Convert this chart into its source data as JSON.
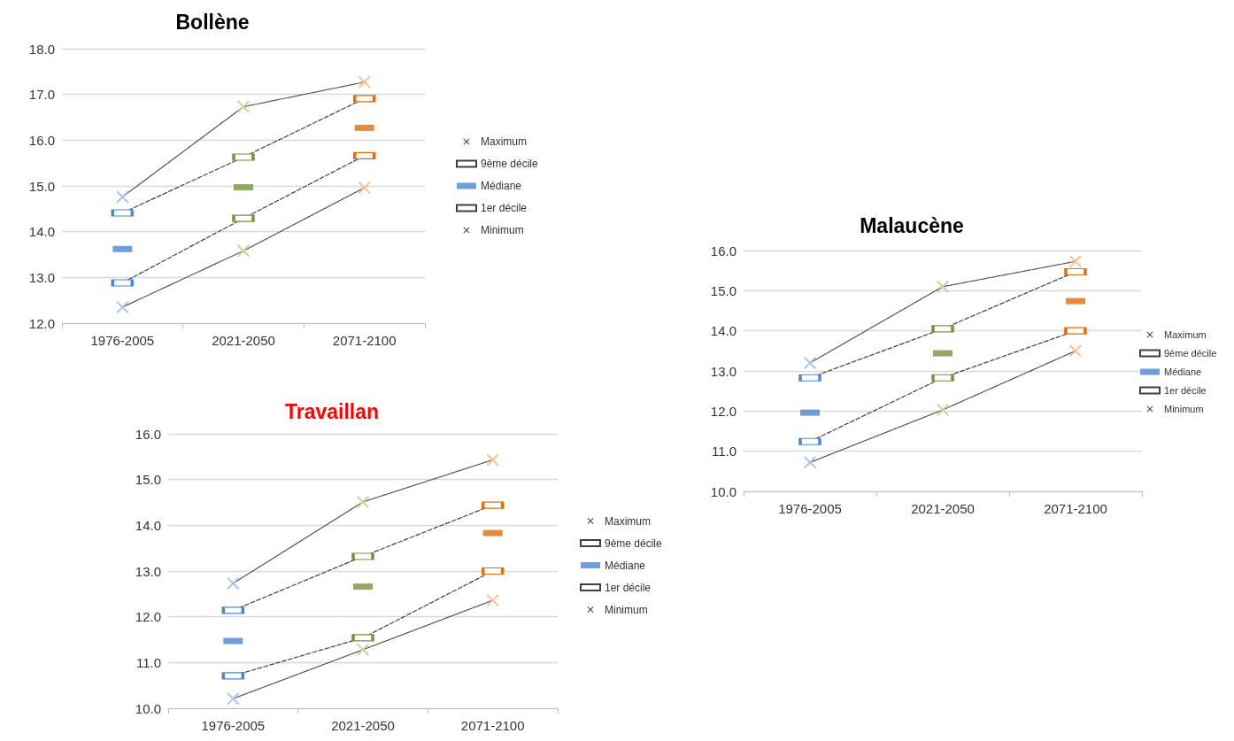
{
  "chart_data": [
    {
      "type": "line",
      "title": "Bollène",
      "categories": [
        "1976-2005",
        "2021-2050",
        "2071-2100"
      ],
      "ylim": [
        12,
        18
      ],
      "yticks": [
        {
          "value": 12,
          "label": "12.0"
        },
        {
          "value": 13,
          "label": "13.0"
        },
        {
          "value": 14,
          "label": "14.0"
        },
        {
          "value": 15,
          "label": "15.0"
        },
        {
          "value": 16,
          "label": "16.0"
        },
        {
          "value": 17,
          "label": "17.0"
        },
        {
          "value": 18,
          "label": "18.0"
        }
      ],
      "grid": "y",
      "legend": "right",
      "series": [
        {
          "name": "Maximum",
          "type": "line",
          "marker": "cross",
          "line_style": "dotted",
          "color": "#404040",
          "colors": [
            "#a9c4eb",
            "#c3d69b",
            "#fac090"
          ],
          "values": [
            14.76,
            16.73,
            17.27
          ]
        },
        {
          "name": "9ème décile",
          "type": "line",
          "marker": "square",
          "line_style": "dashed",
          "color": "#404040",
          "colors": [
            "#4a86d4",
            "#77933c",
            "#e46c0a"
          ],
          "values": [
            14.41,
            15.63,
            16.91
          ]
        },
        {
          "name": "Médiane",
          "type": "scatter",
          "marker": "square",
          "colors": [
            "#4a86d4",
            "#77933c",
            "#e46c0a"
          ],
          "values": [
            13.62,
            14.97,
            16.27
          ]
        },
        {
          "name": "1er décile",
          "type": "line",
          "marker": "square",
          "line_style": "dashed",
          "color": "#404040",
          "colors": [
            "#4a86d4",
            "#77933c",
            "#e46c0a"
          ],
          "values": [
            12.88,
            14.29,
            15.66
          ]
        },
        {
          "name": "Minimum",
          "type": "line",
          "marker": "cross",
          "line_style": "dotted",
          "color": "#404040",
          "colors": [
            "#a9c4eb",
            "#c3d69b",
            "#fac090"
          ],
          "values": [
            12.35,
            13.58,
            14.96
          ]
        }
      ]
    },
    {
      "type": "line",
      "title": "Travaillan",
      "categories": [
        "1976-2005",
        "2021-2050",
        "2071-2100"
      ],
      "ylim": [
        10,
        16
      ],
      "yticks": [
        {
          "value": 10,
          "label": "10.0"
        },
        {
          "value": 11,
          "label": "11.0"
        },
        {
          "value": 12,
          "label": "12.0"
        },
        {
          "value": 13,
          "label": "13.0"
        },
        {
          "value": 14,
          "label": "14.0"
        },
        {
          "value": 15,
          "label": "15.0"
        },
        {
          "value": 16,
          "label": "16.0"
        }
      ],
      "grid": "y",
      "legend": "right",
      "series": [
        {
          "name": "Maximum",
          "type": "line",
          "marker": "cross",
          "line_style": "dotted",
          "color": "#404040",
          "colors": [
            "#a9c4eb",
            "#c3d69b",
            "#fac090"
          ],
          "values": [
            12.73,
            14.51,
            15.43
          ]
        },
        {
          "name": "9ème décile",
          "type": "line",
          "marker": "square",
          "line_style": "dashed",
          "color": "#404040",
          "colors": [
            "#4a86d4",
            "#77933c",
            "#e46c0a"
          ],
          "values": [
            12.14,
            13.32,
            14.44
          ]
        },
        {
          "name": "Médiane",
          "type": "scatter",
          "marker": "square",
          "colors": [
            "#4a86d4",
            "#77933c",
            "#e46c0a"
          ],
          "values": [
            11.47,
            12.66,
            13.83
          ]
        },
        {
          "name": "1er décile",
          "type": "line",
          "marker": "square",
          "line_style": "dashed",
          "color": "#404040",
          "colors": [
            "#4a86d4",
            "#77933c",
            "#e46c0a"
          ],
          "values": [
            10.71,
            11.54,
            13.0
          ]
        },
        {
          "name": "Minimum",
          "type": "line",
          "marker": "cross",
          "line_style": "dotted",
          "color": "#404040",
          "colors": [
            "#a9c4eb",
            "#c3d69b",
            "#fac090"
          ],
          "values": [
            10.21,
            11.28,
            12.36
          ]
        }
      ]
    },
    {
      "type": "line",
      "title": "Malaucène",
      "categories": [
        "1976-2005",
        "2021-2050",
        "2071-2100"
      ],
      "ylim": [
        10,
        16
      ],
      "yticks": [
        {
          "value": 10,
          "label": "10.0"
        },
        {
          "value": 11,
          "label": "11.0"
        },
        {
          "value": 12,
          "label": "12.0"
        },
        {
          "value": 13,
          "label": "13.0"
        },
        {
          "value": 14,
          "label": "14.0"
        },
        {
          "value": 15,
          "label": "15.0"
        },
        {
          "value": 16,
          "label": "16.0"
        }
      ],
      "grid": "y",
      "legend": "right",
      "series": [
        {
          "name": "Maximum",
          "type": "line",
          "marker": "cross",
          "line_style": "dotted",
          "color": "#404040",
          "colors": [
            "#a9c4eb",
            "#c3d69b",
            "#fac090"
          ],
          "values": [
            13.2,
            15.1,
            15.73
          ]
        },
        {
          "name": "9ème décile",
          "type": "line",
          "marker": "square",
          "line_style": "dashed",
          "color": "#404040",
          "colors": [
            "#4a86d4",
            "#77933c",
            "#e46c0a"
          ],
          "values": [
            12.83,
            14.05,
            15.47
          ]
        },
        {
          "name": "Médiane",
          "type": "scatter",
          "marker": "square",
          "colors": [
            "#4a86d4",
            "#77933c",
            "#e46c0a"
          ],
          "values": [
            11.96,
            13.44,
            14.74
          ]
        },
        {
          "name": "1er décile",
          "type": "line",
          "marker": "square",
          "line_style": "dashed",
          "color": "#404040",
          "colors": [
            "#4a86d4",
            "#77933c",
            "#e46c0a"
          ],
          "values": [
            11.24,
            12.83,
            14.0
          ]
        },
        {
          "name": "Minimum",
          "type": "line",
          "marker": "cross",
          "line_style": "dotted",
          "color": "#404040",
          "colors": [
            "#a9c4eb",
            "#c3d69b",
            "#fac090"
          ],
          "values": [
            10.72,
            12.03,
            13.5
          ]
        }
      ]
    }
  ]
}
